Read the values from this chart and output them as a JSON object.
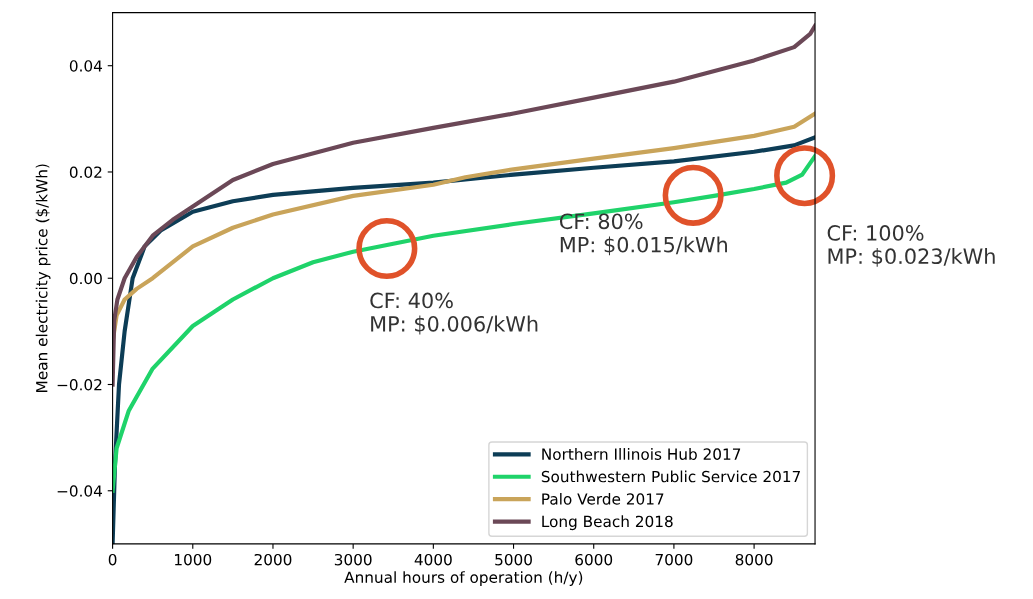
{
  "chart_data": {
    "type": "line",
    "xlabel": "Annual hours of operation (h/y)",
    "ylabel": "Mean electricity price ($/kWh)",
    "xlim": [
      0,
      8760
    ],
    "xticks": [
      0,
      1000,
      2000,
      3000,
      4000,
      5000,
      6000,
      7000,
      8000
    ],
    "ylim": [
      -0.05,
      0.05
    ],
    "yticks": [
      {
        "value": -0.04,
        "label": "−0.04"
      },
      {
        "value": -0.02,
        "label": "−0.02"
      },
      {
        "value": 0,
        "label": "0.00"
      },
      {
        "value": 0.02,
        "label": "0.02"
      },
      {
        "value": 0.04,
        "label": "0.04"
      }
    ],
    "grid": false,
    "legend": "bottom right",
    "line_style": "solid",
    "series": [
      {
        "name": "Northern Illinois Hub 2017",
        "color": "#0d3d56",
        "x": [
          0,
          30,
          80,
          150,
          250,
          400,
          600,
          1000,
          1500,
          2000,
          3000,
          4000,
          5000,
          6000,
          7000,
          8000,
          8500,
          8760
        ],
        "values": [
          -0.05,
          -0.035,
          -0.02,
          -0.01,
          0.0,
          0.006,
          0.009,
          0.0125,
          0.0145,
          0.0157,
          0.017,
          0.018,
          0.0195,
          0.0208,
          0.022,
          0.0238,
          0.025,
          0.0265
        ]
      },
      {
        "name": "Southwestern Public Service 2017",
        "color": "#1fd36a",
        "x": [
          0,
          50,
          200,
          500,
          1000,
          1500,
          2000,
          2500,
          3000,
          3500,
          4000,
          5000,
          6000,
          7000,
          7500,
          8000,
          8400,
          8600,
          8760
        ],
        "values": [
          -0.04,
          -0.032,
          -0.025,
          -0.017,
          -0.009,
          -0.004,
          0.0,
          0.003,
          0.005,
          0.0065,
          0.008,
          0.0102,
          0.0122,
          0.0143,
          0.0155,
          0.0168,
          0.018,
          0.0195,
          0.023
        ]
      },
      {
        "name": "Palo Verde 2017",
        "color": "#c9a45a",
        "x": [
          0,
          50,
          150,
          300,
          500,
          1000,
          1500,
          2000,
          3000,
          4000,
          4400,
          5000,
          6000,
          7000,
          8000,
          8500,
          8760
        ],
        "values": [
          -0.012,
          -0.007,
          -0.004,
          -0.002,
          0.0,
          0.006,
          0.0095,
          0.012,
          0.0155,
          0.0176,
          0.019,
          0.0205,
          0.0225,
          0.0245,
          0.0268,
          0.0285,
          0.031
        ]
      },
      {
        "name": "Long Beach 2018",
        "color": "#6b4857",
        "x": [
          0,
          20,
          60,
          150,
          300,
          500,
          750,
          1000,
          1500,
          2000,
          3000,
          4000,
          5000,
          6000,
          7000,
          8000,
          8500,
          8700,
          8760
        ],
        "values": [
          -0.02,
          -0.008,
          -0.004,
          0.0,
          0.004,
          0.008,
          0.011,
          0.0135,
          0.0185,
          0.0215,
          0.0255,
          0.0283,
          0.031,
          0.034,
          0.037,
          0.041,
          0.0435,
          0.046,
          0.0475
        ]
      }
    ],
    "annotations": [
      {
        "text": "CF: 40%\nMP: $0.006/kWh",
        "x": 3420,
        "y": 0.0056
      },
      {
        "text": "CF: 80%\nMP: $0.015/kWh",
        "x": 7240,
        "y": 0.0156
      },
      {
        "text": "CF: 100%\nMP: $0.023/kWh",
        "x": 8630,
        "y": 0.0193
      }
    ]
  }
}
